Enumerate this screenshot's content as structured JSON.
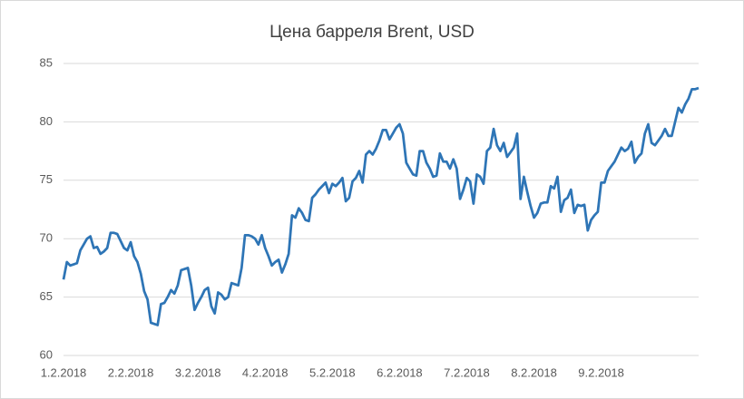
{
  "chart_data": {
    "type": "line",
    "title": "Цена барреля Brent, USD",
    "categories": [
      "1.2.2018",
      null,
      null,
      null,
      null,
      null,
      null,
      null,
      null,
      null,
      null,
      null,
      null,
      null,
      null,
      null,
      null,
      null,
      null,
      null,
      "2.2.2018",
      null,
      null,
      null,
      null,
      null,
      null,
      null,
      null,
      null,
      null,
      null,
      null,
      null,
      null,
      null,
      null,
      null,
      null,
      null,
      "3.2.2018",
      null,
      null,
      null,
      null,
      null,
      null,
      null,
      null,
      null,
      null,
      null,
      null,
      null,
      null,
      null,
      null,
      null,
      null,
      null,
      "4.2.2018",
      null,
      null,
      null,
      null,
      null,
      null,
      null,
      null,
      null,
      null,
      null,
      null,
      null,
      null,
      null,
      null,
      null,
      null,
      null,
      "5.2.2018",
      null,
      null,
      null,
      null,
      null,
      null,
      null,
      null,
      null,
      null,
      null,
      null,
      null,
      null,
      null,
      null,
      null,
      null,
      null,
      "6.2.2018",
      null,
      null,
      null,
      null,
      null,
      null,
      null,
      null,
      null,
      null,
      null,
      null,
      null,
      null,
      null,
      null,
      null,
      null,
      null,
      "7.2.2018",
      null,
      null,
      null,
      null,
      null,
      null,
      null,
      null,
      null,
      null,
      null,
      null,
      null,
      null,
      null,
      null,
      null,
      null,
      null,
      "8.2.2018",
      null,
      null,
      null,
      null,
      null,
      null,
      null,
      null,
      null,
      null,
      null,
      null,
      null,
      null,
      null,
      null,
      null,
      null,
      null,
      "9.2.2018",
      null,
      null,
      null,
      null,
      null,
      null,
      null,
      null,
      null,
      null,
      null,
      null,
      null,
      null,
      null,
      null,
      null,
      null,
      null,
      null,
      null,
      null,
      null,
      null,
      null,
      null,
      null,
      null,
      null
    ],
    "series": [
      {
        "name": "Brent",
        "color": "#2e75b6",
        "values": [
          66.5,
          68.0,
          67.7,
          67.8,
          67.9,
          69.0,
          69.5,
          70.0,
          70.2,
          69.2,
          69.3,
          68.7,
          68.9,
          69.2,
          70.5,
          70.5,
          70.4,
          69.8,
          69.2,
          69.0,
          69.7,
          68.5,
          68.0,
          67.0,
          65.5,
          64.8,
          62.8,
          62.7,
          62.6,
          64.4,
          64.5,
          65.0,
          65.6,
          65.3,
          66.0,
          67.3,
          67.4,
          67.5,
          66.0,
          63.9,
          64.5,
          65.0,
          65.6,
          65.8,
          64.2,
          63.6,
          65.4,
          65.2,
          64.8,
          65.0,
          66.2,
          66.1,
          66.0,
          67.5,
          70.3,
          70.3,
          70.2,
          70.0,
          69.5,
          70.3,
          69.2,
          68.5,
          67.7,
          68.0,
          68.2,
          67.1,
          67.8,
          68.7,
          72.0,
          71.8,
          72.6,
          72.2,
          71.6,
          71.5,
          73.5,
          73.8,
          74.2,
          74.5,
          74.8,
          73.9,
          74.7,
          74.5,
          74.8,
          75.2,
          73.2,
          73.5,
          74.9,
          75.2,
          75.8,
          74.8,
          77.2,
          77.5,
          77.2,
          77.7,
          78.4,
          79.3,
          79.3,
          78.5,
          79.0,
          79.5,
          79.8,
          79.0,
          76.5,
          76.0,
          75.5,
          75.4,
          77.5,
          77.5,
          76.5,
          76.0,
          75.3,
          75.4,
          77.3,
          76.6,
          76.6,
          76.0,
          76.8,
          76.0,
          73.4,
          74.2,
          75.2,
          74.9,
          73.0,
          75.5,
          75.3,
          74.7,
          77.5,
          77.8,
          79.4,
          78.0,
          77.5,
          78.2,
          77.0,
          77.4,
          77.8,
          79.0,
          73.4,
          75.3,
          74.0,
          72.8,
          71.8,
          72.2,
          73.0,
          73.1,
          73.1,
          74.5,
          74.3,
          75.3,
          72.3,
          73.3,
          73.5,
          74.2,
          72.2,
          72.9,
          72.8,
          72.9,
          70.7,
          71.6,
          72.0,
          72.3,
          74.8,
          74.8,
          75.8,
          76.2,
          76.6,
          77.2,
          77.8,
          77.5,
          77.7,
          78.3,
          76.5,
          77.0,
          77.3,
          79.0,
          79.8,
          78.2,
          78.0,
          78.4,
          78.8,
          79.4,
          78.8,
          78.8,
          80.0,
          81.2,
          80.8,
          81.5,
          82.0,
          82.8,
          82.8,
          82.9
        ]
      }
    ],
    "ylim": [
      60,
      85
    ],
    "yticks": [
      60,
      65,
      70,
      75,
      80,
      85
    ],
    "grid": true
  }
}
